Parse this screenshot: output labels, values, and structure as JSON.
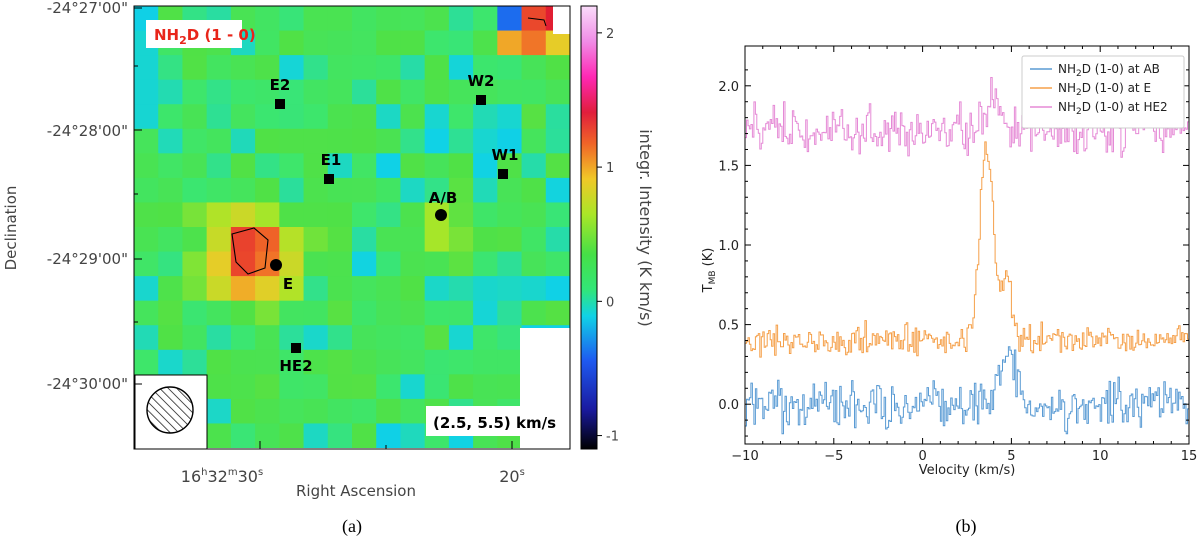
{
  "chart_data": [
    {
      "type": "heatmap",
      "panel_label": "(a)",
      "title": "NH",
      "title_sub": "2",
      "title_rest": "D (1 - 0)",
      "velocity_range_label": "(2.5, 5.5) km/s",
      "xlabel": "Right Ascension",
      "ylabel": "Declination",
      "x_ticks": [
        {
          "h": "16",
          "m": "32",
          "s": "30"
        },
        {
          "h": "",
          "m": "",
          "s": "20"
        }
      ],
      "y_ticks": [
        "-24°27'00\"",
        "-24°28'00\"",
        "-24°29'00\"",
        "-24°30'00\""
      ],
      "colorbar": {
        "label": "integr. Intensity (K km/s)",
        "range": [
          -1.1,
          2.2
        ],
        "ticks": [
          "2",
          "1",
          "0",
          "-1"
        ],
        "tick_values": [
          2,
          1,
          0,
          -1
        ]
      },
      "sources": [
        {
          "name": "E2",
          "marker": "square"
        },
        {
          "name": "W2",
          "marker": "square"
        },
        {
          "name": "E1",
          "marker": "square"
        },
        {
          "name": "W1",
          "marker": "square"
        },
        {
          "name": "A/B",
          "marker": "circle"
        },
        {
          "name": "E",
          "marker": "circle"
        },
        {
          "name": "HE2",
          "marker": "square"
        }
      ]
    },
    {
      "type": "line",
      "panel_label": "(b)",
      "xlabel": "Velocity (km/s)",
      "ylabel": "T",
      "ylabel_sub": "MB",
      "ylabel_unit": "(K)",
      "xlim": [
        -10,
        15
      ],
      "ylim": [
        -0.25,
        2.25
      ],
      "x_ticks": [
        -10,
        -5,
        0,
        5,
        10,
        15
      ],
      "y_ticks": [
        0.0,
        0.5,
        1.0,
        1.5,
        2.0
      ],
      "x_tick_labels": [
        "−10",
        "−5",
        "0",
        "5",
        "10",
        "15"
      ],
      "y_tick_labels": [
        "0.0",
        "0.5",
        "1.0",
        "1.5",
        "2.0"
      ],
      "legend_position": "top-right",
      "series": [
        {
          "name_pre": "NH",
          "name_sub": "2",
          "name_post": "D (1-0) at AB",
          "color": "#5a9bd4",
          "baseline": 0.0,
          "noise": 0.075,
          "peaks": [
            {
              "center": 4.8,
              "width": 0.45,
              "height": 0.3
            }
          ]
        },
        {
          "name_pre": "NH",
          "name_sub": "2",
          "name_post": "D (1-0) at E",
          "color": "#f5a04a",
          "baseline": 0.4,
          "noise": 0.045,
          "peaks": [
            {
              "center": 3.6,
              "width": 0.38,
              "height": 1.22
            },
            {
              "center": 4.7,
              "width": 0.28,
              "height": 0.42
            }
          ]
        },
        {
          "name_pre": "NH",
          "name_sub": "2",
          "name_post": "D (1-0) at HE2",
          "color": "#e58ad6",
          "baseline": 1.72,
          "noise": 0.07,
          "peaks": [
            {
              "center": 4.0,
              "width": 0.4,
              "height": 0.22
            }
          ]
        }
      ]
    }
  ]
}
